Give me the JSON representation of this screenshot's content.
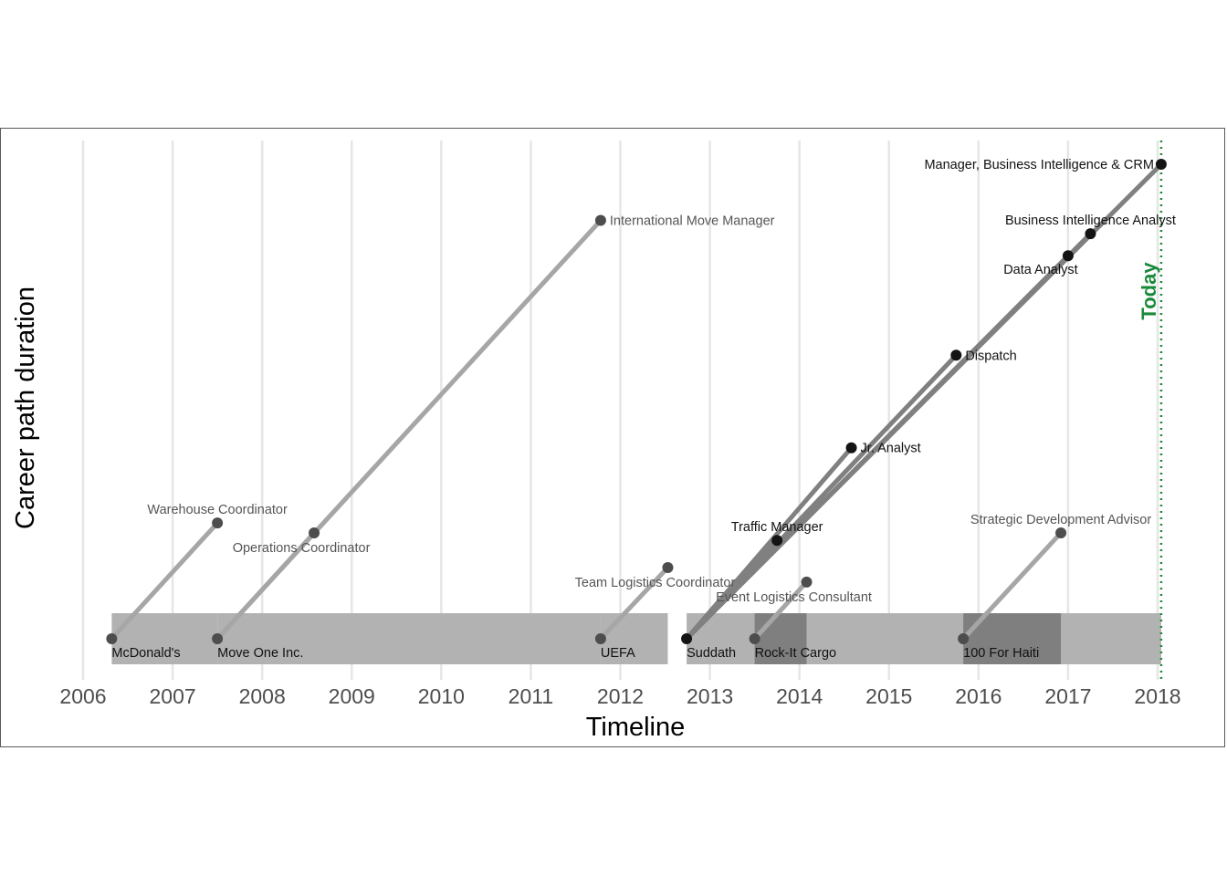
{
  "chart_data": {
    "type": "timeline",
    "xlabel": "Timeline",
    "ylabel": "Career path duration",
    "xlim": [
      2006.0,
      2018.0
    ],
    "x_ticks": [
      2006,
      2007,
      2008,
      2009,
      2010,
      2011,
      2012,
      2013,
      2014,
      2015,
      2016,
      2017,
      2018
    ],
    "grid": "vertical",
    "today": {
      "label": "Today",
      "x": 2018.04,
      "color": "#1a8a3a"
    },
    "colors": {
      "bar": "#b2b2b2",
      "bar_overlap": "#7f7f7f",
      "line_past": "#a6a6a6",
      "line_current": "#808080",
      "point_past": "#4d4d4d",
      "point_current": "#141414",
      "text_past": "#555555",
      "text_current": "#111111"
    },
    "employers": [
      {
        "name": "McDonald's",
        "start": 2006.32,
        "end": 2007.5,
        "current": false
      },
      {
        "name": "Move One Inc.",
        "start": 2007.5,
        "end": 2011.78,
        "current": false
      },
      {
        "name": "UEFA",
        "start": 2011.78,
        "end": 2012.53,
        "current": false
      },
      {
        "name": "Suddath",
        "start": 2012.74,
        "end": 2018.04,
        "current": true
      },
      {
        "name": "Rock-It Cargo",
        "start": 2013.5,
        "end": 2014.08,
        "current": false
      },
      {
        "name": "100 For Haiti",
        "start": 2015.83,
        "end": 2016.92,
        "current": false
      }
    ],
    "roles": [
      {
        "title": "Warehouse Coordinator",
        "employer": "McDonald's",
        "x": 2007.5,
        "level": 0.2,
        "label_pos": "above",
        "current": false
      },
      {
        "title": "Operations Coordinator",
        "employer": "Move One Inc.",
        "x": 2008.58,
        "level": 0.183,
        "label_pos": "below",
        "current": false
      },
      {
        "title": "International Move Manager",
        "employer": "Move One Inc.",
        "x": 2011.78,
        "level": 0.723,
        "label_pos": "right",
        "current": false
      },
      {
        "title": "Team Logistics Coordinator",
        "employer": "UEFA",
        "x": 2012.53,
        "level": 0.123,
        "label_pos": "below",
        "current": false
      },
      {
        "title": "Event Logistics Consultant",
        "employer": "Rock-It Cargo",
        "x": 2014.08,
        "level": 0.098,
        "label_pos": "below",
        "current": false
      },
      {
        "title": "Strategic Development Advisor",
        "employer": "100 For Haiti",
        "x": 2016.92,
        "level": 0.183,
        "label_pos": "above",
        "current": false
      },
      {
        "title": "Traffic Manager",
        "employer": "Suddath",
        "x": 2013.75,
        "level": 0.17,
        "label_pos": "above",
        "current": true
      },
      {
        "title": "Jr. Analyst",
        "employer": "Suddath",
        "x": 2014.58,
        "level": 0.33,
        "label_pos": "right",
        "current": true
      },
      {
        "title": "Dispatch",
        "employer": "Suddath",
        "x": 2015.75,
        "level": 0.49,
        "label_pos": "right",
        "current": true
      },
      {
        "title": "Data Analyst",
        "employer": "Suddath",
        "x": 2017.0,
        "level": 0.662,
        "label_pos": "below-left",
        "current": true
      },
      {
        "title": "Business Intelligence Analyst",
        "employer": "Suddath",
        "x": 2017.25,
        "level": 0.7,
        "label_pos": "above",
        "current": true
      },
      {
        "title": "Manager, Business Intelligence & CRM",
        "employer": "Suddath",
        "x": 2018.04,
        "level": 0.82,
        "label_pos": "left",
        "current": true
      }
    ]
  }
}
